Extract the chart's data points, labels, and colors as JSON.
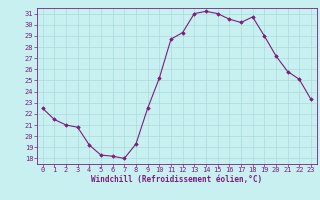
{
  "x": [
    0,
    1,
    2,
    3,
    4,
    5,
    6,
    7,
    8,
    9,
    10,
    11,
    12,
    13,
    14,
    15,
    16,
    17,
    18,
    19,
    20,
    21,
    22,
    23
  ],
  "y": [
    22.5,
    21.5,
    21.0,
    20.8,
    19.2,
    18.3,
    18.2,
    18.0,
    19.3,
    22.5,
    25.2,
    28.7,
    29.3,
    31.0,
    31.2,
    31.0,
    30.5,
    30.2,
    30.7,
    29.0,
    27.2,
    25.8,
    25.1,
    23.3
  ],
  "line_color": "#7B1F7B",
  "marker": "D",
  "marker_size": 1.8,
  "xlabel": "Windchill (Refroidissement éolien,°C)",
  "xlabel_color": "#7B1F7B",
  "bg_color": "#c8f0f0",
  "grid_color": "#aadada",
  "tick_color": "#7B1F7B",
  "ylim": [
    17.5,
    31.5
  ],
  "xlim": [
    -0.5,
    23.5
  ],
  "yticks": [
    18,
    19,
    20,
    21,
    22,
    23,
    24,
    25,
    26,
    27,
    28,
    29,
    30,
    31
  ],
  "xticks": [
    0,
    1,
    2,
    3,
    4,
    5,
    6,
    7,
    8,
    9,
    10,
    11,
    12,
    13,
    14,
    15,
    16,
    17,
    18,
    19,
    20,
    21,
    22,
    23
  ],
  "font_size_label": 5.5,
  "font_size_tick": 5.0
}
